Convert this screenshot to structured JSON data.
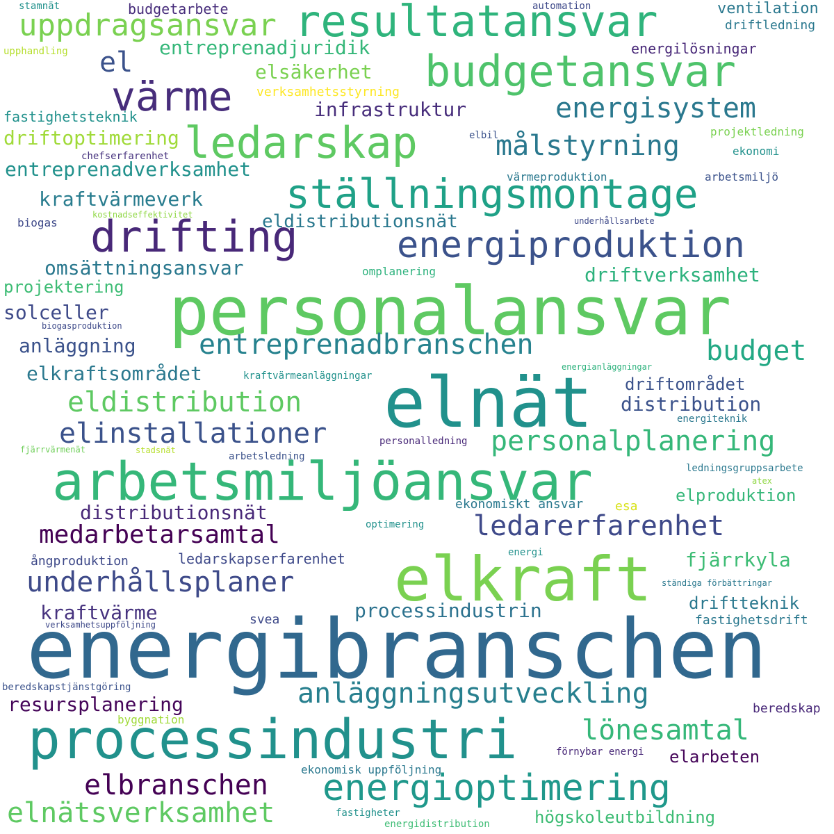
{
  "words": [
    {
      "text": "personalansvar",
      "color": "#5ec962"
    },
    {
      "text": "energibranschen",
      "color": "#31688e"
    },
    {
      "text": "elnät",
      "color": "#21918c"
    },
    {
      "text": "elkraft",
      "color": "#7ad151"
    },
    {
      "text": "arbetsmiljöansvar",
      "color": "#35b779"
    },
    {
      "text": "processindustri",
      "color": "#21918c"
    },
    {
      "text": "resultatansvar",
      "color": "#2fb47c"
    },
    {
      "text": "budgetansvar",
      "color": "#4ec36b"
    },
    {
      "text": "drifting",
      "color": "#482878"
    },
    {
      "text": "ledarskap",
      "color": "#5ec962"
    },
    {
      "text": "ställningsmontage",
      "color": "#1fa187"
    },
    {
      "text": "energiproduktion",
      "color": "#3b528b"
    },
    {
      "text": "uppdragsansvar",
      "color": "#7ad151"
    },
    {
      "text": "värme",
      "color": "#472d7b"
    },
    {
      "text": "energioptimering",
      "color": "#1f988b"
    },
    {
      "text": "elnätsverksamhet",
      "color": "#5ec962"
    },
    {
      "text": "elbranschen",
      "color": "#440154"
    },
    {
      "text": "anläggningsutveckling",
      "color": "#277f8e"
    },
    {
      "text": "entreprenadbranschen",
      "color": "#26828e"
    },
    {
      "text": "eldistribution",
      "color": "#5ec962"
    },
    {
      "text": "elinstallationer",
      "color": "#3b528b"
    },
    {
      "text": "personalplanering",
      "color": "#35b779"
    },
    {
      "text": "medarbetarsamtal",
      "color": "#440154"
    },
    {
      "text": "underhållsplaner",
      "color": "#3e4a89"
    },
    {
      "text": "ledarerfarenhet",
      "color": "#3e4989"
    },
    {
      "text": "energisystem",
      "color": "#2a788e"
    },
    {
      "text": "målstyrning",
      "color": "#2a788e"
    },
    {
      "text": "budget",
      "color": "#22a884"
    },
    {
      "text": "lönesamtal",
      "color": "#35b779"
    },
    {
      "text": "el",
      "color": "#3b528b"
    },
    {
      "text": "processindustrin",
      "color": "#2c728e"
    },
    {
      "text": "entreprenadjuridik",
      "color": "#35b779"
    },
    {
      "text": "elsäkerhet",
      "color": "#7ad151"
    },
    {
      "text": "infrastruktur",
      "color": "#472d7b"
    },
    {
      "text": "driftoptimering",
      "color": "#a0da39"
    },
    {
      "text": "entreprenadverksamhet",
      "color": "#21918c"
    },
    {
      "text": "kraftvärmeverk",
      "color": "#287c8e"
    },
    {
      "text": "eldistributionsnät",
      "color": "#2a788e"
    },
    {
      "text": "omsättningsansvar",
      "color": "#2a788e"
    },
    {
      "text": "driftverksamhet",
      "color": "#2db27d"
    },
    {
      "text": "projektering",
      "color": "#3dbc74"
    },
    {
      "text": "solceller",
      "color": "#3e4a89"
    },
    {
      "text": "anläggning",
      "color": "#3b528b"
    },
    {
      "text": "elkraftsområdet",
      "color": "#2a788e"
    },
    {
      "text": "driftområdet",
      "color": "#3b528b"
    },
    {
      "text": "distribution",
      "color": "#3b528b"
    },
    {
      "text": "distributionsnät",
      "color": "#482878"
    },
    {
      "text": "fjärrkyla",
      "color": "#3dbc74"
    },
    {
      "text": "elproduktion",
      "color": "#35b779"
    },
    {
      "text": "kraftvärme",
      "color": "#46327e"
    },
    {
      "text": "resursplanering",
      "color": "#450559"
    },
    {
      "text": "driftteknik",
      "color": "#2a788e"
    },
    {
      "text": "elarbeten",
      "color": "#450559"
    },
    {
      "text": "högskoleutbildning",
      "color": "#3dbc74"
    },
    {
      "text": "fastighetsteknik",
      "color": "#21918c"
    },
    {
      "text": "budgetarbete",
      "color": "#472d7b"
    },
    {
      "text": "ventilation",
      "color": "#2a788e"
    },
    {
      "text": "energilösningar",
      "color": "#482878"
    },
    {
      "text": "driftledning",
      "color": "#2a788e"
    },
    {
      "text": "verksamhetsstyrning",
      "color": "#fde725"
    },
    {
      "text": "ledarskapserfarenhet",
      "color": "#3e4989"
    },
    {
      "text": "ekonomiskt ansvar",
      "color": "#2a788e"
    },
    {
      "text": "fastighetsdrift",
      "color": "#2a788e"
    },
    {
      "text": "beredskap",
      "color": "#482878"
    },
    {
      "text": "stamnät",
      "color": "#21918c"
    },
    {
      "text": "automation",
      "color": "#3e4989"
    },
    {
      "text": "upphandling",
      "color": "#b5de2b"
    },
    {
      "text": "projektledning",
      "color": "#7ad151"
    },
    {
      "text": "elbil",
      "color": "#3b528b"
    },
    {
      "text": "ekonomi",
      "color": "#21918c"
    },
    {
      "text": "chefserfarenhet",
      "color": "#46327e"
    },
    {
      "text": "värmeproduktion",
      "color": "#2a788e"
    },
    {
      "text": "arbetsmiljö",
      "color": "#3b528b"
    },
    {
      "text": "biogas",
      "color": "#3e4989"
    },
    {
      "text": "kostnadseffektivitet",
      "color": "#8fd744"
    },
    {
      "text": "underhållsarbete",
      "color": "#3e4989"
    },
    {
      "text": "omplanering",
      "color": "#2db27d"
    },
    {
      "text": "biogasproduktion",
      "color": "#3e4a89"
    },
    {
      "text": "energianläggningar",
      "color": "#2db27d"
    },
    {
      "text": "kraftvärmeanläggningar",
      "color": "#21918c"
    },
    {
      "text": "energiteknik",
      "color": "#2a788e"
    },
    {
      "text": "personalledning",
      "color": "#482878"
    },
    {
      "text": "fjärrvärmenät",
      "color": "#6ece58"
    },
    {
      "text": "stadsnät",
      "color": "#b5de2b"
    },
    {
      "text": "arbetsledning",
      "color": "#3b528b"
    },
    {
      "text": "ledningsgruppsarbete",
      "color": "#2a788e"
    },
    {
      "text": "atex",
      "color": "#8fd744"
    },
    {
      "text": "esa",
      "color": "#d8e219"
    },
    {
      "text": "optimering",
      "color": "#21918c"
    },
    {
      "text": "ångproduktion",
      "color": "#3e4989"
    },
    {
      "text": "energi",
      "color": "#21918c"
    },
    {
      "text": "ständiga förbättringar",
      "color": "#2a788e"
    },
    {
      "text": "svea",
      "color": "#3e4989"
    },
    {
      "text": "verksamhetsuppföljning",
      "color": "#3e4989"
    },
    {
      "text": "beredskapstjänstgöring",
      "color": "#3b528b"
    },
    {
      "text": "byggnation",
      "color": "#a0da39"
    },
    {
      "text": "förnybar energi",
      "color": "#482878"
    },
    {
      "text": "ekonomisk uppföljning",
      "color": "#2a788e"
    },
    {
      "text": "fastigheter",
      "color": "#21918c"
    },
    {
      "text": "energidistribution",
      "color": "#3dbc74"
    }
  ]
}
